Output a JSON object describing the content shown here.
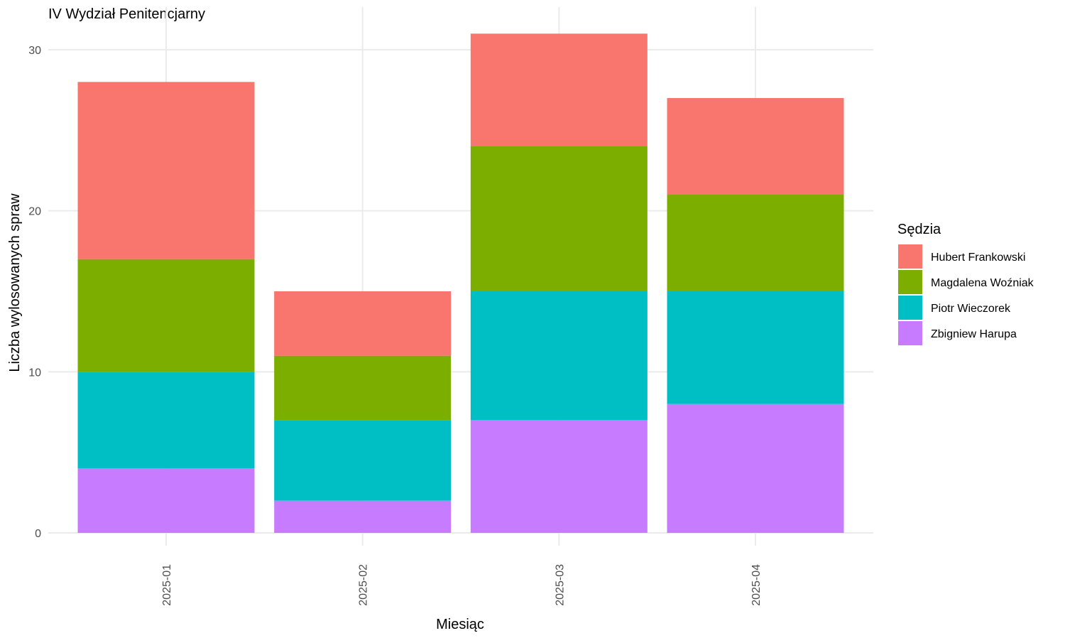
{
  "chart_data": {
    "type": "bar",
    "stacked": true,
    "title": "IV Wydział Penitencjarny",
    "xlabel": "Miesiąc",
    "ylabel": "Liczba wylosowanych spraw",
    "categories": [
      "2025-01",
      "2025-02",
      "2025-03",
      "2025-04"
    ],
    "ylim": [
      0,
      32.5
    ],
    "yticks": [
      0,
      10,
      20,
      30
    ],
    "grid": true,
    "legend": {
      "title": "Sędzia",
      "position": "right"
    },
    "series": [
      {
        "name": "Zbigniew Harupa",
        "color": "#C77CFF",
        "values": [
          4,
          2,
          7,
          8
        ]
      },
      {
        "name": "Piotr Wieczorek",
        "color": "#00BFC4",
        "values": [
          6,
          5,
          8,
          7
        ]
      },
      {
        "name": "Magdalena Woźniak",
        "color": "#7CAE00",
        "values": [
          7,
          4,
          9,
          6
        ]
      },
      {
        "name": "Hubert Frankowski",
        "color": "#F8766D",
        "values": [
          11,
          4,
          7,
          6
        ]
      }
    ],
    "legend_order": [
      "Hubert Frankowski",
      "Magdalena Woźniak",
      "Piotr Wieczorek",
      "Zbigniew Harupa"
    ]
  }
}
